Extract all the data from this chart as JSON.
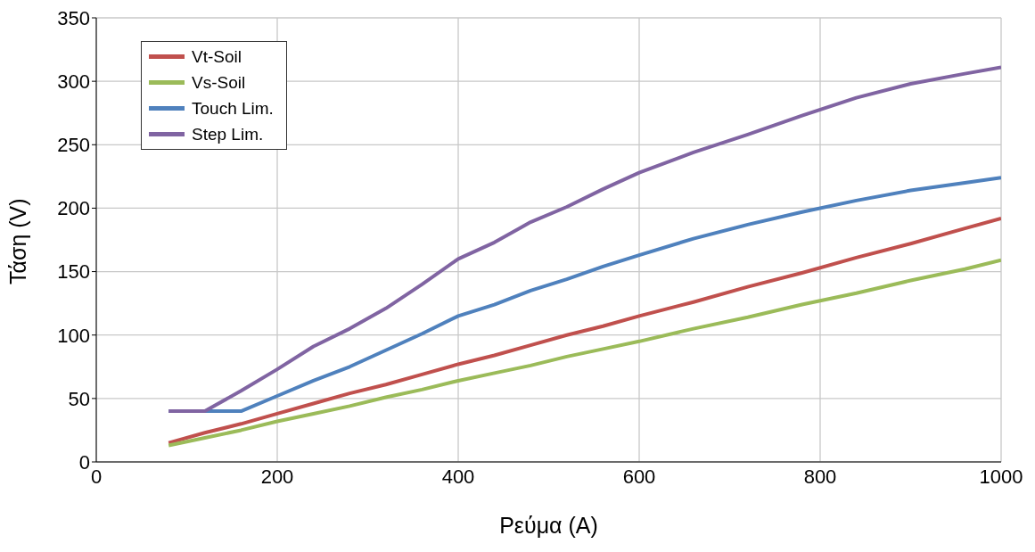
{
  "chart_data": {
    "type": "line",
    "xlabel": "Ρεύμα  (A)",
    "ylabel": "Τάση (V)",
    "x": [
      80,
      120,
      160,
      200,
      240,
      280,
      320,
      360,
      400,
      440,
      480,
      520,
      560,
      600,
      660,
      720,
      780,
      840,
      900,
      960,
      1000
    ],
    "series": [
      {
        "name": "Vt-Soil",
        "color": "#c0504d",
        "values": [
          15,
          23,
          30,
          38,
          46,
          54,
          61,
          69,
          77,
          84,
          92,
          100,
          107,
          115,
          126,
          138,
          149,
          161,
          172,
          184,
          192
        ]
      },
      {
        "name": "Vs-Soil",
        "color": "#9bbb59",
        "values": [
          13,
          19,
          25,
          32,
          38,
          44,
          51,
          57,
          64,
          70,
          76,
          83,
          89,
          95,
          105,
          114,
          124,
          133,
          143,
          152,
          159
        ]
      },
      {
        "name": "Touch Lim.",
        "color": "#4f81bd",
        "values": [
          40,
          40,
          40,
          52,
          64,
          75,
          88,
          101,
          115,
          124,
          135,
          144,
          154,
          163,
          176,
          187,
          197,
          206,
          214,
          220,
          224
        ]
      },
      {
        "name": "Step Lim.",
        "color": "#8064a2",
        "values": [
          40,
          40,
          56,
          73,
          91,
          105,
          121,
          140,
          160,
          173,
          189,
          201,
          215,
          228,
          244,
          258,
          273,
          287,
          298,
          306,
          311
        ]
      }
    ],
    "xlim": [
      0,
      1000
    ],
    "xticks": [
      0,
      200,
      400,
      600,
      800,
      1000
    ],
    "ylim": [
      0,
      350
    ],
    "yticks": [
      0,
      50,
      100,
      150,
      200,
      250,
      300,
      350
    ],
    "grid": true,
    "legend": "top left",
    "marker": "none",
    "line_style": "solid"
  }
}
